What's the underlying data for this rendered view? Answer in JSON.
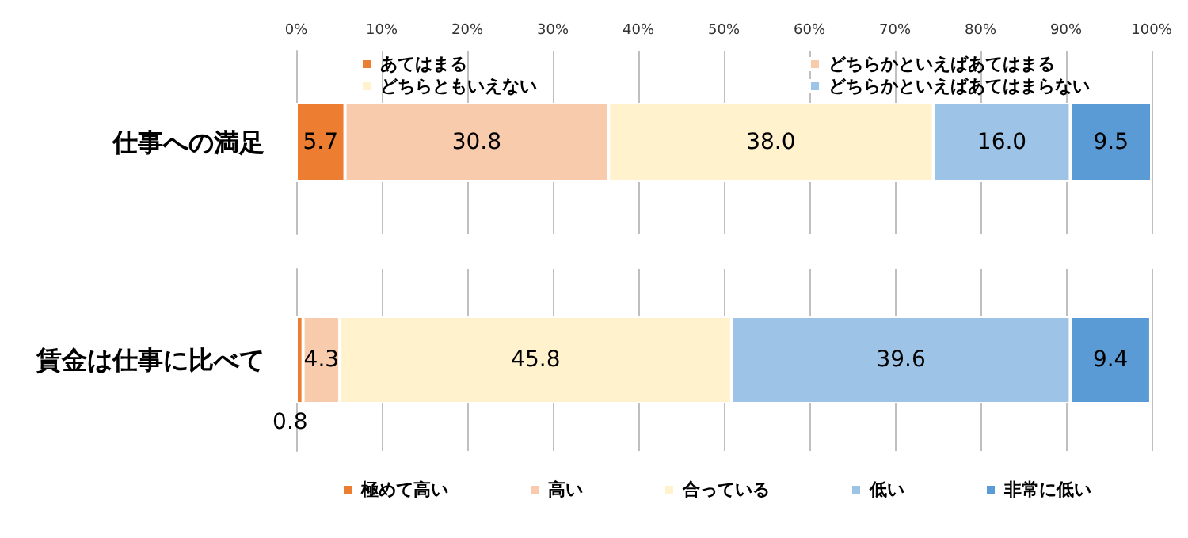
{
  "chart_data": [
    {
      "type": "bar",
      "orientation": "horizontal",
      "stacked": true,
      "categories": [
        "仕事への満足"
      ],
      "series": [
        {
          "name": "あてはまる",
          "color": "#ed7d31",
          "values": [
            5.7
          ]
        },
        {
          "name": "どちらかといえばあてはまる",
          "color": "#f8cbad",
          "values": [
            30.8
          ]
        },
        {
          "name": "どちらともいえない",
          "color": "#fff2cc",
          "values": [
            38.0
          ],
          "value_labels": [
            "38.0"
          ]
        },
        {
          "name": "どちらかといえばあてはまらない",
          "color": "#9dc3e6",
          "values": [
            16.0
          ],
          "value_labels": [
            "16.0"
          ]
        },
        {
          "color": "#5b9bd5",
          "values": [
            9.5
          ]
        }
      ],
      "xlim": [
        0,
        100
      ],
      "xticks": [
        {
          "value": 0,
          "label": "0%"
        },
        {
          "value": 10,
          "label": "10%"
        },
        {
          "value": 20,
          "label": "20%"
        },
        {
          "value": 30,
          "label": "30%"
        },
        {
          "value": 40,
          "label": "40%"
        },
        {
          "value": 50,
          "label": "50%"
        },
        {
          "value": 60,
          "label": "60%"
        },
        {
          "value": 70,
          "label": "70%"
        },
        {
          "value": 80,
          "label": "80%"
        },
        {
          "value": 90,
          "label": "90%"
        },
        {
          "value": 100,
          "label": "100%"
        }
      ],
      "grid": "x",
      "legend": "top",
      "data_labels": true
    },
    {
      "type": "bar",
      "orientation": "horizontal",
      "stacked": true,
      "categories": [
        "賃金は仕事に比べて"
      ],
      "series": [
        {
          "name": "極めて高い",
          "color": "#ed7d31",
          "values": [
            0.8
          ]
        },
        {
          "name": "高い",
          "color": "#f8cbad",
          "values": [
            4.3
          ]
        },
        {
          "name": "合っている",
          "color": "#fff2cc",
          "values": [
            45.8
          ]
        },
        {
          "name": "低い",
          "color": "#9dc3e6",
          "values": [
            39.6
          ]
        },
        {
          "name": "非常に低い",
          "color": "#5b9bd5",
          "values": [
            9.4
          ]
        }
      ],
      "xlim": [
        0,
        100
      ],
      "xticks": [
        {
          "value": 0,
          "label": null
        },
        {
          "value": 10,
          "label": null
        },
        {
          "value": 20,
          "label": null
        },
        {
          "value": 30,
          "label": null
        },
        {
          "value": 40,
          "label": null
        },
        {
          "value": 50,
          "label": null
        },
        {
          "value": 60,
          "label": null
        },
        {
          "value": 70,
          "label": null
        },
        {
          "value": 80,
          "label": null
        },
        {
          "value": 90,
          "label": null
        },
        {
          "value": 100,
          "label": null
        }
      ],
      "grid": "x",
      "legend": "bottom",
      "tick_labels": "y",
      "data_labels": true
    }
  ]
}
